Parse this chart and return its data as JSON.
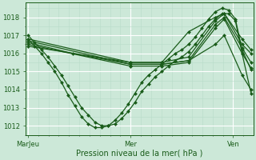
{
  "bg_color": "#cce8d8",
  "grid_color_major": "#ffffff",
  "grid_color_minor": "#b8dcc8",
  "line_color": "#1a5c1a",
  "marker_color": "#1a5c1a",
  "xlabel": "Pression niveau de la mer( hPa )",
  "xtick_labels": [
    "MarJeu",
    "Mer",
    "Ven"
  ],
  "xtick_positions": [
    0.0,
    0.46,
    0.92
  ],
  "xlim": [
    -0.01,
    1.01
  ],
  "ylim": [
    1011.5,
    1018.8
  ],
  "yticks": [
    1012,
    1013,
    1014,
    1015,
    1016,
    1017,
    1018
  ],
  "series": [
    {
      "x": [
        0.0,
        0.03,
        0.06,
        0.09,
        0.12,
        0.15,
        0.18,
        0.21,
        0.24,
        0.27,
        0.3,
        0.33,
        0.36,
        0.39,
        0.42,
        0.45,
        0.48,
        0.51,
        0.54,
        0.57,
        0.6,
        0.63,
        0.66,
        0.69,
        0.72,
        0.75,
        0.78,
        0.81,
        0.84,
        0.87,
        0.9,
        0.93,
        0.96,
        1.0
      ],
      "y": [
        1017.0,
        1016.6,
        1016.2,
        1015.8,
        1015.3,
        1014.8,
        1014.2,
        1013.6,
        1013.0,
        1012.6,
        1012.2,
        1012.0,
        1012.0,
        1012.1,
        1012.4,
        1012.8,
        1013.3,
        1013.9,
        1014.3,
        1014.7,
        1015.0,
        1015.3,
        1015.6,
        1015.8,
        1016.1,
        1016.5,
        1017.0,
        1017.5,
        1017.9,
        1018.2,
        1018.2,
        1017.8,
        1016.0,
        1013.8
      ],
      "marker": "D",
      "markersize": 2.0,
      "linewidth": 0.9
    },
    {
      "x": [
        0.0,
        0.03,
        0.06,
        0.09,
        0.12,
        0.15,
        0.18,
        0.21,
        0.24,
        0.27,
        0.3,
        0.33,
        0.36,
        0.39,
        0.42,
        0.45,
        0.48,
        0.51,
        0.54,
        0.57,
        0.6,
        0.63,
        0.66,
        0.69,
        0.72,
        0.75,
        0.78,
        0.81,
        0.84,
        0.87,
        0.9,
        0.93,
        0.96,
        1.0
      ],
      "y": [
        1016.8,
        1016.4,
        1016.0,
        1015.5,
        1015.0,
        1014.4,
        1013.7,
        1013.1,
        1012.5,
        1012.1,
        1011.9,
        1011.9,
        1012.0,
        1012.3,
        1012.7,
        1013.2,
        1013.8,
        1014.4,
        1014.8,
        1015.1,
        1015.4,
        1015.7,
        1016.0,
        1016.2,
        1016.5,
        1016.9,
        1017.4,
        1017.9,
        1018.3,
        1018.5,
        1018.4,
        1017.9,
        1016.2,
        1015.1
      ],
      "marker": "D",
      "markersize": 2.0,
      "linewidth": 0.9
    },
    {
      "x": [
        0.0,
        0.46,
        0.6,
        0.72,
        0.84,
        0.88,
        0.96,
        1.0
      ],
      "y": [
        1016.8,
        1015.5,
        1015.5,
        1015.8,
        1017.8,
        1018.2,
        1016.5,
        1016.0
      ],
      "marker": "D",
      "markersize": 2.0,
      "linewidth": 0.9
    },
    {
      "x": [
        0.0,
        0.46,
        0.6,
        0.72,
        0.84,
        0.88,
        0.96,
        1.0
      ],
      "y": [
        1016.7,
        1015.4,
        1015.4,
        1015.6,
        1017.6,
        1018.0,
        1016.3,
        1015.5
      ],
      "marker": "D",
      "markersize": 2.0,
      "linewidth": 0.9
    },
    {
      "x": [
        0.0,
        0.46,
        0.6,
        0.72,
        0.84,
        0.88,
        0.96,
        1.0
      ],
      "y": [
        1016.5,
        1015.3,
        1015.3,
        1015.5,
        1017.4,
        1017.9,
        1016.0,
        1015.2
      ],
      "marker": "D",
      "markersize": 2.0,
      "linewidth": 0.9
    },
    {
      "x": [
        0.0,
        0.46,
        0.6,
        0.72,
        0.84,
        0.88,
        0.96,
        1.0
      ],
      "y": [
        1016.4,
        1015.5,
        1015.5,
        1017.2,
        1018.0,
        1018.2,
        1016.8,
        1016.2
      ],
      "marker": "D",
      "markersize": 2.0,
      "linewidth": 0.9
    },
    {
      "x": [
        0.0,
        0.2,
        0.46,
        0.6,
        0.72,
        0.84,
        0.88,
        0.96,
        1.0
      ],
      "y": [
        1016.6,
        1016.0,
        1015.4,
        1015.4,
        1015.6,
        1016.5,
        1017.0,
        1014.8,
        1014.0
      ],
      "marker": "D",
      "markersize": 2.0,
      "linewidth": 0.9
    }
  ]
}
